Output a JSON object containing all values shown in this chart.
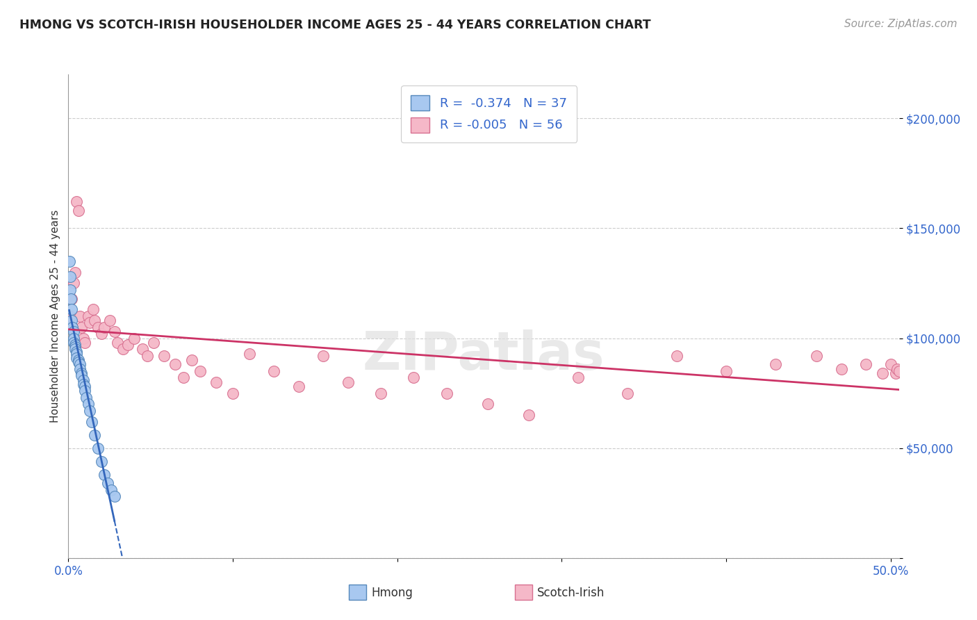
{
  "title": "HMONG VS SCOTCH-IRISH HOUSEHOLDER INCOME AGES 25 - 44 YEARS CORRELATION CHART",
  "source": "Source: ZipAtlas.com",
  "ylabel": "Householder Income Ages 25 - 44 years",
  "xlim": [
    0.0,
    0.505
  ],
  "ylim": [
    0,
    220000
  ],
  "yticks": [
    0,
    50000,
    100000,
    150000,
    200000
  ],
  "ytick_labels": [
    "",
    "$50,000",
    "$100,000",
    "$150,000",
    "$200,000"
  ],
  "xticks": [
    0.0,
    0.1,
    0.2,
    0.3,
    0.4,
    0.5
  ],
  "xtick_labels": [
    "0.0%",
    "",
    "",
    "",
    "",
    "50.0%"
  ],
  "hmong_color": "#a8c8f0",
  "hmong_edge_color": "#5588bb",
  "scotch_color": "#f5b8c8",
  "scotch_edge_color": "#d87090",
  "hmong_r": -0.374,
  "hmong_n": 37,
  "scotch_r": -0.005,
  "scotch_n": 56,
  "regression_hmong_color": "#3366bb",
  "regression_scotch_color": "#cc3366",
  "watermark": "ZIPatlas",
  "hmong_x": [
    0.0005,
    0.001,
    0.001,
    0.0015,
    0.002,
    0.002,
    0.0025,
    0.003,
    0.003,
    0.003,
    0.004,
    0.004,
    0.004,
    0.005,
    0.005,
    0.005,
    0.006,
    0.006,
    0.007,
    0.007,
    0.008,
    0.008,
    0.009,
    0.009,
    0.01,
    0.01,
    0.011,
    0.012,
    0.013,
    0.014,
    0.016,
    0.018,
    0.02,
    0.022,
    0.024,
    0.026,
    0.028
  ],
  "hmong_y": [
    135000,
    128000,
    122000,
    118000,
    113000,
    108000,
    105000,
    103000,
    100000,
    98000,
    97000,
    96000,
    95000,
    94000,
    93000,
    91000,
    90000,
    89000,
    88000,
    86000,
    84000,
    83000,
    81000,
    79000,
    78000,
    76000,
    73000,
    70000,
    67000,
    62000,
    56000,
    50000,
    44000,
    38000,
    34000,
    31000,
    28000
  ],
  "scotch_x": [
    0.001,
    0.002,
    0.003,
    0.004,
    0.005,
    0.006,
    0.007,
    0.008,
    0.009,
    0.01,
    0.012,
    0.013,
    0.015,
    0.016,
    0.018,
    0.02,
    0.022,
    0.025,
    0.028,
    0.03,
    0.033,
    0.036,
    0.04,
    0.045,
    0.048,
    0.052,
    0.058,
    0.065,
    0.07,
    0.075,
    0.08,
    0.09,
    0.1,
    0.11,
    0.125,
    0.14,
    0.155,
    0.17,
    0.19,
    0.21,
    0.23,
    0.255,
    0.28,
    0.31,
    0.34,
    0.37,
    0.4,
    0.43,
    0.455,
    0.47,
    0.485,
    0.495,
    0.5,
    0.503,
    0.504,
    0.505
  ],
  "scotch_y": [
    110000,
    118000,
    125000,
    130000,
    162000,
    158000,
    110000,
    105000,
    100000,
    98000,
    110000,
    107000,
    113000,
    108000,
    105000,
    102000,
    105000,
    108000,
    103000,
    98000,
    95000,
    97000,
    100000,
    95000,
    92000,
    98000,
    92000,
    88000,
    82000,
    90000,
    85000,
    80000,
    75000,
    93000,
    85000,
    78000,
    92000,
    80000,
    75000,
    82000,
    75000,
    70000,
    65000,
    82000,
    75000,
    92000,
    85000,
    88000,
    92000,
    86000,
    88000,
    84000,
    88000,
    84000,
    86000,
    85000
  ]
}
